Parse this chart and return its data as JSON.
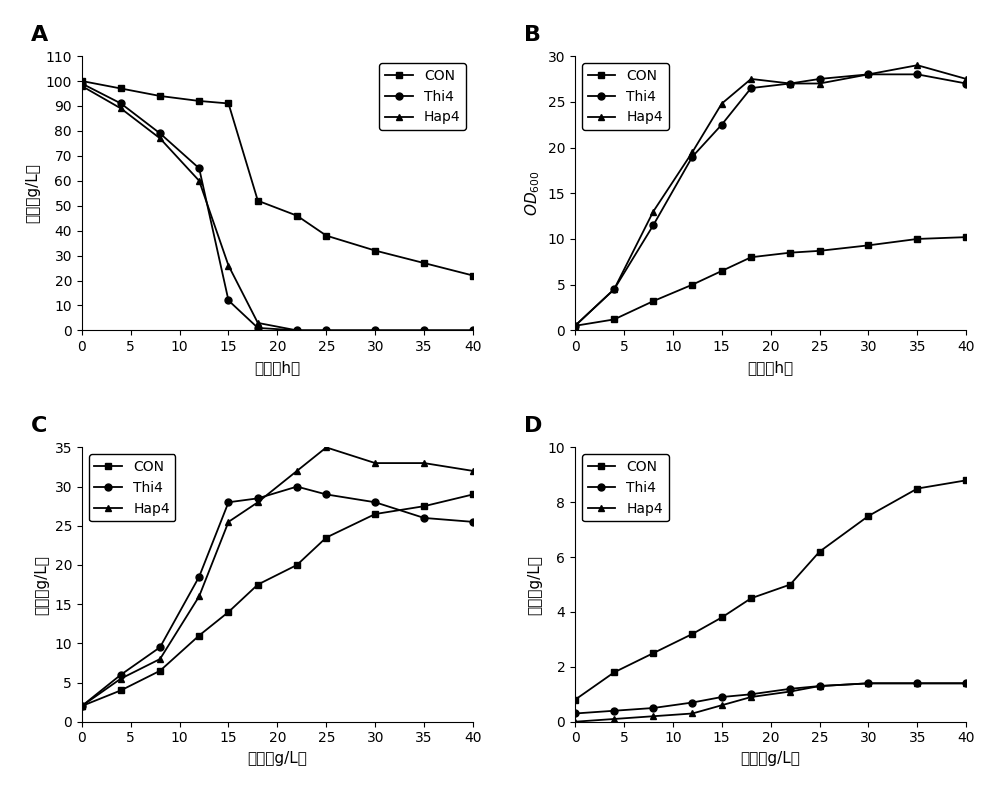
{
  "A": {
    "xlabel": "时间（h）",
    "ylabel": "残糖（g/L）",
    "ylim": [
      0,
      110
    ],
    "yticks": [
      0,
      10,
      20,
      30,
      40,
      50,
      60,
      70,
      80,
      90,
      100,
      110
    ],
    "xlim": [
      0,
      40
    ],
    "xticks": [
      0,
      5,
      10,
      15,
      20,
      25,
      30,
      35,
      40
    ],
    "CON_x": [
      0,
      4,
      8,
      12,
      15,
      18,
      22,
      25,
      30,
      35,
      40
    ],
    "CON_y": [
      100,
      97,
      94,
      92,
      91,
      52,
      46,
      38,
      32,
      27,
      22
    ],
    "Thi4_x": [
      0,
      4,
      8,
      12,
      15,
      18,
      22,
      25,
      30,
      35,
      40
    ],
    "Thi4_y": [
      99,
      91,
      79,
      65,
      12,
      1,
      0,
      0,
      0,
      0,
      0
    ],
    "Hap4_x": [
      0,
      4,
      8,
      12,
      15,
      18,
      22,
      25,
      30,
      35,
      40
    ],
    "Hap4_y": [
      98,
      89,
      77,
      60,
      26,
      3,
      0,
      0,
      0,
      0,
      0
    ]
  },
  "B": {
    "xlabel": "时间（h）",
    "ylabel": "OD",
    "ylabel_sub": "600",
    "ylim": [
      0,
      30
    ],
    "yticks": [
      0,
      5,
      10,
      15,
      20,
      25,
      30
    ],
    "xlim": [
      0,
      40
    ],
    "xticks": [
      0,
      5,
      10,
      15,
      20,
      25,
      30,
      35,
      40
    ],
    "CON_x": [
      0,
      4,
      8,
      12,
      15,
      18,
      22,
      25,
      30,
      35,
      40
    ],
    "CON_y": [
      0.5,
      1.2,
      3.2,
      5.0,
      6.5,
      8.0,
      8.5,
      8.7,
      9.3,
      10.0,
      10.2
    ],
    "Thi4_x": [
      0,
      4,
      8,
      12,
      15,
      18,
      22,
      25,
      30,
      35,
      40
    ],
    "Thi4_y": [
      0.5,
      4.5,
      11.5,
      19.0,
      22.5,
      26.5,
      27.0,
      27.5,
      28.0,
      28.0,
      27.0
    ],
    "Hap4_x": [
      0,
      4,
      8,
      12,
      15,
      18,
      22,
      25,
      30,
      35,
      40
    ],
    "Hap4_y": [
      0.5,
      4.5,
      13.0,
      19.5,
      24.8,
      27.5,
      27.0,
      27.0,
      28.0,
      29.0,
      27.5
    ]
  },
  "C": {
    "xlabel": "时间（g/L）",
    "ylabel": "乙醇（g/L）",
    "ylim": [
      0,
      35
    ],
    "yticks": [
      0,
      5,
      10,
      15,
      20,
      25,
      30,
      35
    ],
    "xlim": [
      0,
      40
    ],
    "xticks": [
      0,
      5,
      10,
      15,
      20,
      25,
      30,
      35,
      40
    ],
    "CON_x": [
      0,
      4,
      8,
      12,
      15,
      18,
      22,
      25,
      30,
      35,
      40
    ],
    "CON_y": [
      2.0,
      4.0,
      6.5,
      11.0,
      14.0,
      17.5,
      20.0,
      23.5,
      26.5,
      27.5,
      29.0
    ],
    "Thi4_x": [
      0,
      4,
      8,
      12,
      15,
      18,
      22,
      25,
      30,
      35,
      40
    ],
    "Thi4_y": [
      2.0,
      6.0,
      9.5,
      18.5,
      28.0,
      28.5,
      30.0,
      29.0,
      28.0,
      26.0,
      25.5
    ],
    "Hap4_x": [
      0,
      4,
      8,
      12,
      15,
      18,
      22,
      25,
      30,
      35,
      40
    ],
    "Hap4_y": [
      2.0,
      5.5,
      8.0,
      16.0,
      25.5,
      28.0,
      32.0,
      35.0,
      33.0,
      33.0,
      32.0
    ]
  },
  "D": {
    "xlabel": "时间（g/L）",
    "ylabel": "甘油（g/L）",
    "ylim": [
      0,
      10
    ],
    "yticks": [
      0,
      2,
      4,
      6,
      8,
      10
    ],
    "xlim": [
      0,
      40
    ],
    "xticks": [
      0,
      5,
      10,
      15,
      20,
      25,
      30,
      35,
      40
    ],
    "CON_x": [
      0,
      4,
      8,
      12,
      15,
      18,
      22,
      25,
      30,
      35,
      40
    ],
    "CON_y": [
      0.8,
      1.8,
      2.5,
      3.2,
      3.8,
      4.5,
      5.0,
      6.2,
      7.5,
      8.5,
      8.8
    ],
    "Thi4_x": [
      0,
      4,
      8,
      12,
      15,
      18,
      22,
      25,
      30,
      35,
      40
    ],
    "Thi4_y": [
      0.3,
      0.4,
      0.5,
      0.7,
      0.9,
      1.0,
      1.2,
      1.3,
      1.4,
      1.4,
      1.4
    ],
    "Hap4_x": [
      0,
      4,
      8,
      12,
      15,
      18,
      22,
      25,
      30,
      35,
      40
    ],
    "Hap4_y": [
      0.0,
      0.1,
      0.2,
      0.3,
      0.6,
      0.9,
      1.1,
      1.3,
      1.4,
      1.4,
      1.4
    ]
  },
  "line_color": "#000000",
  "marker_CON": "s",
  "marker_Thi4": "o",
  "marker_Hap4": "^",
  "markersize": 5,
  "linewidth": 1.3,
  "label_fontsize": 11,
  "tick_fontsize": 10,
  "legend_fontsize": 10,
  "panel_label_fontsize": 16
}
